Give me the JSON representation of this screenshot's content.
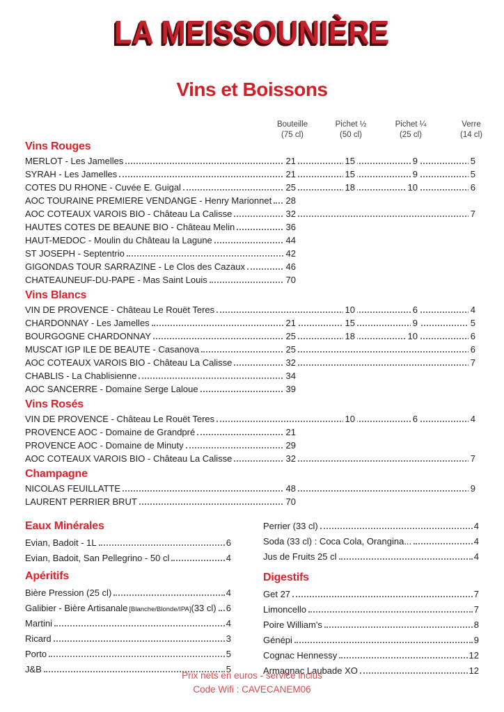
{
  "page": {
    "title": "LA MEISSOUNIÈRE",
    "subtitle": "Vins et Boissons",
    "footer_line1": "Prix nets en euros - service inclus",
    "footer_line2": "Code Wifi : CAVECANEM06"
  },
  "colors": {
    "title_red": "#c6202a",
    "accent_red": "#d8232c",
    "footer_red": "#d94a50",
    "text": "#1d1d1f",
    "dots": "#6e6e6e"
  },
  "columns": [
    {
      "label": "Bouteille",
      "sub": "(75 cl)"
    },
    {
      "label": "Pichet ½",
      "sub": "(50 cl)"
    },
    {
      "label": "Pichet ¼",
      "sub": "(25 cl)"
    },
    {
      "label": "Verre",
      "sub": "(14 cl)"
    }
  ],
  "wine_sections": [
    {
      "title": "Vins Rouges",
      "rows": [
        {
          "name": "MERLOT - Les Jamelles",
          "prices": [
            21,
            15,
            9,
            5
          ]
        },
        {
          "name": "SYRAH - Les Jamelles",
          "prices": [
            21,
            15,
            9,
            5
          ]
        },
        {
          "name": "COTES DU RHONE - Cuvée E. Guigal",
          "prices": [
            25,
            18,
            10,
            6
          ]
        },
        {
          "name": "AOC TOURAINE PREMIERE VENDANGE - Henry Marionnet",
          "prices": [
            28,
            null,
            null,
            null
          ]
        },
        {
          "name": "AOC COTEAUX VAROIS BIO - Château La Calisse",
          "prices": [
            32,
            null,
            null,
            7
          ]
        },
        {
          "name": "HAUTES COTES DE BEAUNE BIO - Château Melin",
          "prices": [
            36,
            null,
            null,
            null
          ]
        },
        {
          "name": "HAUT-MEDOC - Moulin du Château la Lagune",
          "prices": [
            44,
            null,
            null,
            null
          ]
        },
        {
          "name": "ST JOSEPH - Septentrio",
          "prices": [
            42,
            null,
            null,
            null
          ]
        },
        {
          "name": "GIGONDAS TOUR SARRAZINE - Le Clos des Cazaux",
          "prices": [
            46,
            null,
            null,
            null
          ]
        },
        {
          "name": "CHATEAUNEUF-DU-PAPE - Mas Saint Louis",
          "prices": [
            70,
            null,
            null,
            null
          ]
        }
      ]
    },
    {
      "title": "Vins Blancs",
      "rows": [
        {
          "name": "VIN DE PROVENCE - Château Le Rouët Teres",
          "prices": [
            null,
            10,
            6,
            4
          ]
        },
        {
          "name": "CHARDONNAY - Les Jamelles",
          "prices": [
            21,
            15,
            9,
            5
          ]
        },
        {
          "name": "BOURGOGNE CHARDONNAY",
          "prices": [
            25,
            18,
            10,
            6
          ]
        },
        {
          "name": "MUSCAT IGP ILE DE BEAUTE - Casanova",
          "prices": [
            25,
            null,
            null,
            6
          ]
        },
        {
          "name": "AOC COTEAUX VAROIS BIO - Château La Calisse",
          "prices": [
            32,
            null,
            null,
            7
          ]
        },
        {
          "name": "CHABLIS - La Chablisienne",
          "prices": [
            34,
            null,
            null,
            null
          ]
        },
        {
          "name": "AOC SANCERRE - Domaine Serge Laloue",
          "prices": [
            39,
            null,
            null,
            null
          ]
        }
      ]
    },
    {
      "title": "Vins Rosés",
      "rows": [
        {
          "name": "VIN DE PROVENCE - Château Le Rouët Teres",
          "prices": [
            null,
            10,
            6,
            4
          ]
        },
        {
          "name": "PROVENCE AOC - Domaine de Grandpré",
          "prices": [
            21,
            null,
            null,
            null
          ]
        },
        {
          "name": "PROVENCE AOC - Domaine de Minuty",
          "prices": [
            29,
            null,
            null,
            null
          ]
        },
        {
          "name": "AOC COTEAUX VAROIS BIO - Château La Calisse",
          "prices": [
            32,
            null,
            null,
            7
          ]
        }
      ]
    },
    {
      "title": "Champagne",
      "rows": [
        {
          "name": "NICOLAS FEUILLATTE",
          "prices": [
            48,
            null,
            null,
            9
          ]
        },
        {
          "name": "LAURENT PERRIER BRUT",
          "prices": [
            70,
            null,
            null,
            null
          ]
        }
      ]
    }
  ],
  "bottom_left": [
    {
      "title": "Eaux Minérales",
      "rows": [
        {
          "name": "Evian, Badoit - 1L",
          "price": 6
        },
        {
          "name": "Evian, Badoit, San Pellegrino - 50 cl",
          "price": 4
        }
      ]
    },
    {
      "title": "Apéritifs",
      "rows": [
        {
          "name": "Bière Pression (25 cl)",
          "price": 4
        },
        {
          "name": "Galibier - Bière Artisanale",
          "small": "[Blanche/Blonde/IPA]",
          "suffix": "(33 cl)",
          "price": 6
        },
        {
          "name": "Martini",
          "price": 4
        },
        {
          "name": "Ricard",
          "price": 3
        },
        {
          "name": "Porto",
          "price": 5
        },
        {
          "name": "J&B",
          "price": 5
        }
      ]
    }
  ],
  "bottom_right": [
    {
      "title": "",
      "rows": [
        {
          "name": "Perrier (33 cl)",
          "price": 4
        },
        {
          "name": "Soda (33 cl) : Coca Cola, Orangina...",
          "price": 4
        },
        {
          "name": "Jus de Fruits 25 cl",
          "price": 4
        }
      ]
    },
    {
      "title": "Digestifs",
      "rows": [
        {
          "name": "Get 27",
          "price": 7
        },
        {
          "name": "Limoncello",
          "price": 7
        },
        {
          "name": "Poire William's",
          "price": 8
        },
        {
          "name": "Génépi",
          "price": 9
        },
        {
          "name": "Cognac Hennessy",
          "price": 12
        },
        {
          "name": "Armagnac Laubade XO",
          "price": 12
        }
      ]
    }
  ]
}
